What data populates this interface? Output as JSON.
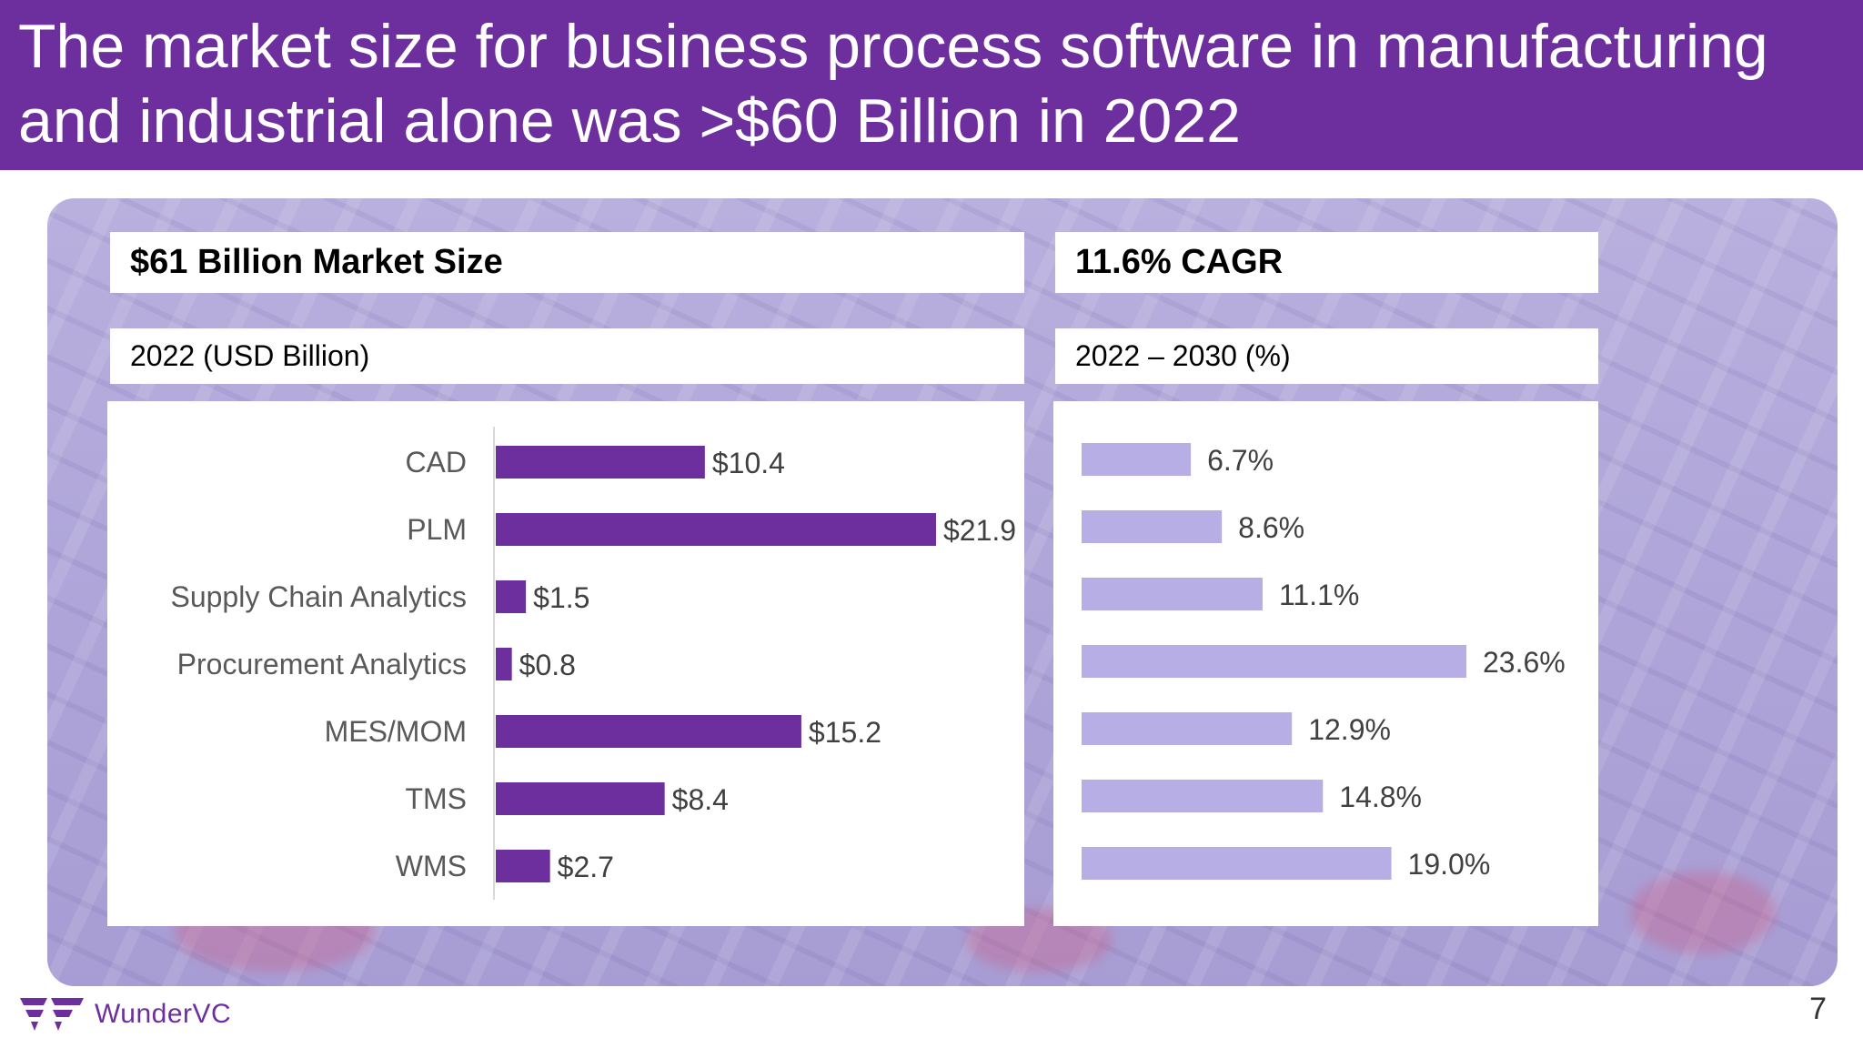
{
  "slide": {
    "title": "The market size for business process software in manufacturing and industrial alone was >$60 Billion in 2022",
    "page_number": "7",
    "brand": "WunderVC",
    "colors": {
      "header": "#6e2f9e",
      "bar_market": "#6e2f9e",
      "bar_cagr": "#b6aee4"
    }
  },
  "left": {
    "heading": "$61 Billion Market Size",
    "subheading": "2022 (USD Billion)"
  },
  "right": {
    "heading": "11.6% CAGR",
    "subheading": "2022 – 2030 (%)"
  },
  "chart_data": [
    {
      "type": "bar",
      "orientation": "horizontal",
      "title": "$61 Billion Market Size",
      "subtitle": "2022 (USD Billion)",
      "categories": [
        "CAD",
        "PLM",
        "Supply Chain Analytics",
        "Procurement Analytics",
        "MES/MOM",
        "TMS",
        "WMS"
      ],
      "values": [
        10.4,
        21.9,
        1.5,
        0.8,
        15.2,
        8.4,
        2.7
      ],
      "value_labels": [
        "$10.4",
        "$21.9",
        "$1.5",
        "$0.8",
        "$15.2",
        "$8.4",
        "$2.7"
      ],
      "xlim": [
        0,
        21.9
      ],
      "grid": false,
      "color": "#6e2f9e"
    },
    {
      "type": "bar",
      "orientation": "horizontal",
      "title": "11.6% CAGR",
      "subtitle": "2022 – 2030 (%)",
      "categories": [
        "CAD",
        "PLM",
        "Supply Chain Analytics",
        "Procurement Analytics",
        "MES/MOM",
        "TMS",
        "WMS"
      ],
      "values": [
        6.7,
        8.6,
        11.1,
        23.6,
        12.9,
        14.8,
        19.0
      ],
      "value_labels": [
        "6.7%",
        "8.6%",
        "11.1%",
        "23.6%",
        "12.9%",
        "14.8%",
        "19.0%"
      ],
      "xlim": [
        0,
        23.6
      ],
      "grid": false,
      "color": "#b6aee4"
    }
  ]
}
